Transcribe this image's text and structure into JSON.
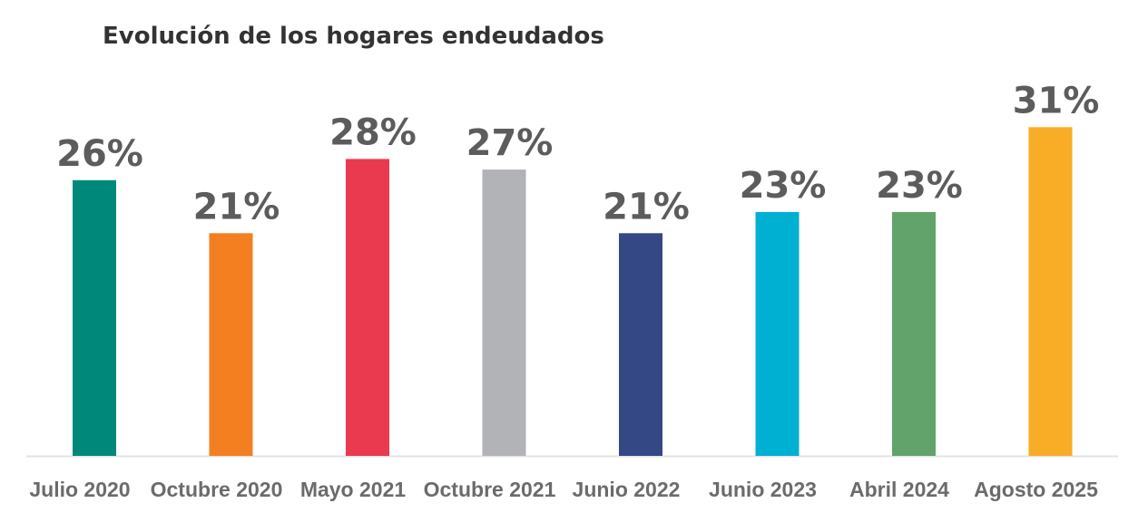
{
  "chart_data": {
    "type": "bar",
    "title": "Evolución de los hogares endeudados",
    "xlabel": "",
    "ylabel": "",
    "ylim": [
      0,
      31
    ],
    "grid": false,
    "legend": "none",
    "value_suffix": "%",
    "categories": [
      "Julio 2020",
      "Octubre 2020",
      "Mayo 2021",
      "Octubre 2021",
      "Junio 2022",
      "Junio 2023",
      "Abril 2024",
      "Agosto 2025"
    ],
    "values": [
      26,
      21,
      28,
      27,
      21,
      23,
      23,
      31
    ],
    "data_labels": [
      "26%",
      "21%",
      "28%",
      "27%",
      "21%",
      "23%",
      "23%",
      "31%"
    ],
    "colors": [
      "#00897b",
      "#f37f21",
      "#ea3a4f",
      "#b1b3b6",
      "#344886",
      "#00b0d3",
      "#62a36b",
      "#f9ac25"
    ]
  },
  "style": {
    "baseline_color": "#e3e3e3"
  }
}
